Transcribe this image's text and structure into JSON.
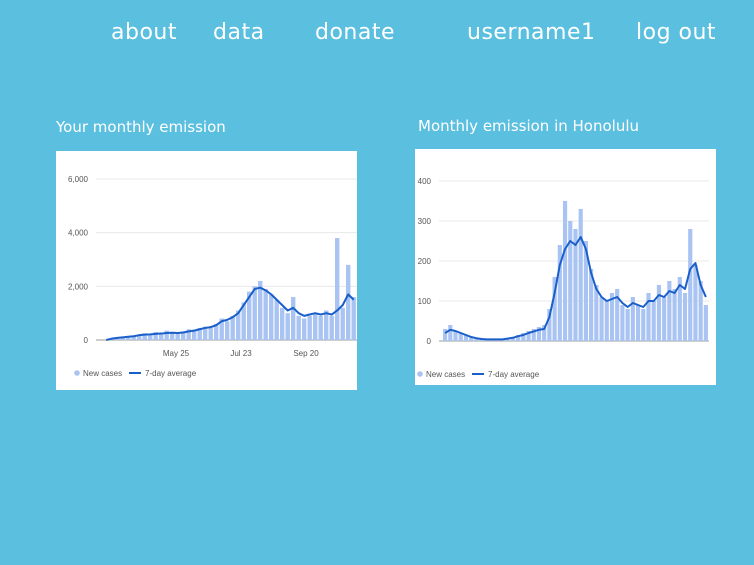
{
  "nav": {
    "about": "about",
    "data": "data",
    "donate": "donate",
    "username": "username1",
    "logout": "log out"
  },
  "charts": {
    "left_title": "Your monthly emission",
    "right_title": "Monthly emission in Honolulu"
  },
  "colors": {
    "background": "#5bbfe0",
    "bars": "#a9c4f2",
    "average_line": "#1a5fc9"
  },
  "chart_data": [
    {
      "type": "bar",
      "title": "",
      "y_ticks": [
        "6,000",
        "4,000",
        "2,000",
        "0"
      ],
      "ylim": [
        0,
        6000
      ],
      "x_tick_labels": [
        "May 25",
        "Jul 23",
        "Sep 20"
      ],
      "legend": [
        "New cases",
        "7-day average"
      ],
      "legend_placement": "bottom-left",
      "grid": true,
      "series": [
        {
          "name": "New cases",
          "values": [
            0,
            50,
            80,
            120,
            100,
            150,
            200,
            250,
            220,
            300,
            280,
            350,
            300,
            250,
            320,
            400,
            380,
            450,
            500,
            450,
            600,
            800,
            700,
            900,
            1100,
            1400,
            1800,
            2000,
            2200,
            1900,
            1700,
            1500,
            1200,
            1000,
            1600,
            900,
            800,
            900,
            1000,
            900,
            1100,
            900,
            3800,
            1200,
            2800,
            1600
          ]
        },
        {
          "name": "7-day average",
          "values": [
            0,
            50,
            80,
            100,
            120,
            140,
            180,
            200,
            210,
            230,
            240,
            260,
            270,
            260,
            280,
            320,
            350,
            400,
            450,
            480,
            550,
            700,
            750,
            850,
            1000,
            1300,
            1600,
            1900,
            1950,
            1850,
            1700,
            1500,
            1300,
            1100,
            1200,
            1000,
            900,
            950,
            1000,
            950,
            1000,
            950,
            1100,
            1300,
            1700,
            1500
          ]
        }
      ]
    },
    {
      "type": "bar",
      "title": "",
      "y_ticks": [
        "400",
        "300",
        "200",
        "100",
        "0"
      ],
      "ylim": [
        0,
        400
      ],
      "legend": [
        "New cases",
        "7-day average"
      ],
      "legend_placement": "bottom-left",
      "grid": true,
      "series": [
        {
          "name": "New cases",
          "values": [
            30,
            40,
            25,
            20,
            15,
            10,
            8,
            5,
            5,
            5,
            5,
            5,
            8,
            10,
            15,
            20,
            25,
            30,
            35,
            40,
            80,
            160,
            240,
            350,
            300,
            280,
            330,
            250,
            180,
            140,
            110,
            100,
            120,
            130,
            90,
            80,
            110,
            90,
            80,
            120,
            100,
            140,
            110,
            150,
            130,
            160,
            120,
            280,
            190,
            150,
            90
          ]
        },
        {
          "name": "7-day average",
          "values": [
            20,
            28,
            25,
            20,
            15,
            10,
            7,
            5,
            4,
            4,
            4,
            4,
            6,
            8,
            12,
            15,
            20,
            24,
            28,
            30,
            60,
            120,
            190,
            230,
            250,
            240,
            260,
            230,
            170,
            130,
            110,
            100,
            105,
            110,
            95,
            85,
            95,
            90,
            85,
            100,
            100,
            115,
            110,
            125,
            120,
            140,
            130,
            180,
            195,
            140,
            110
          ]
        }
      ]
    }
  ]
}
